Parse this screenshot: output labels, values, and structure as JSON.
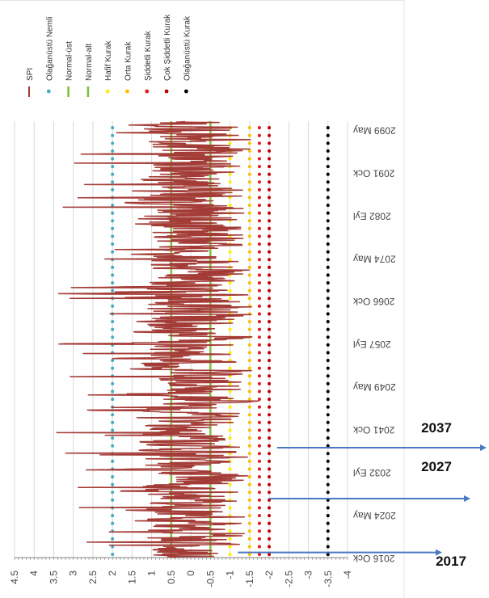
{
  "chart_data": {
    "type": "line",
    "orientation": "rotated-90",
    "title": "",
    "xlabel": "",
    "ylabel": "",
    "value_axis": {
      "ticks": [
        "4.5",
        "4",
        "3.5",
        "3",
        "2.5",
        "2",
        "1.5",
        "1",
        "0.5",
        "0",
        "-0.5",
        "-1",
        "-1.5",
        "-2",
        "-2.5",
        "-3",
        "-3.5",
        "-4"
      ],
      "range": [
        4.5,
        -4
      ]
    },
    "time_axis": {
      "ticks": [
        {
          "label": "2016 Ock",
          "year": 2016.0
        },
        {
          "label": "2024 May",
          "year": 2024.33
        },
        {
          "label": "2032 Eyl",
          "year": 2032.67
        },
        {
          "label": "2041 Ock",
          "year": 2041.0
        },
        {
          "label": "2049 May",
          "year": 2049.33
        },
        {
          "label": "2057 Eyl",
          "year": 2057.67
        },
        {
          "label": "2066 Ock",
          "year": 2066.0
        },
        {
          "label": "2074 May",
          "year": 2074.33
        },
        {
          "label": "2082 Eyl",
          "year": 2082.67
        },
        {
          "label": "2091 Ock",
          "year": 2091.0
        },
        {
          "label": "2099 May",
          "year": 2099.33
        }
      ],
      "range": [
        2016.0,
        2101.0
      ]
    },
    "grid": true,
    "legend_position": "top",
    "series": [
      {
        "name": "SPI",
        "kind": "line",
        "color": "#a33b36",
        "summary": {
          "min": -2.2,
          "max": 3.9,
          "start": 2016.0,
          "end": 2100.9,
          "step": "monthly"
        }
      },
      {
        "name": "Olağanüstü Nemli",
        "kind": "threshold",
        "style": "dots",
        "value": 2.0,
        "color": "#4bacc6"
      },
      {
        "name": "Normal-üst",
        "kind": "threshold",
        "style": "line",
        "value": 0.5,
        "color": "#7cc03c"
      },
      {
        "name": "Normal-alt",
        "kind": "threshold",
        "style": "line",
        "value": -0.5,
        "color": "#7cc03c"
      },
      {
        "name": "Hafif Kurak",
        "kind": "threshold",
        "style": "dots",
        "value": -1.0,
        "color": "#ffee00"
      },
      {
        "name": "Orta Kurak",
        "kind": "threshold",
        "style": "dots",
        "value": -1.5,
        "color": "#ffc000"
      },
      {
        "name": "Şiddetli Kurak",
        "kind": "threshold",
        "style": "dots",
        "value": -1.75,
        "color": "#e41c1c"
      },
      {
        "name": "Çok Şiddetli Kurak",
        "kind": "threshold",
        "style": "dots",
        "value": -2.0,
        "color": "#c00000"
      },
      {
        "name": "Olağanüstü Kurak",
        "kind": "threshold",
        "style": "dots",
        "value": -3.5,
        "color": "#000000"
      }
    ],
    "annotations": [
      {
        "label": "2017",
        "year": 2017.0,
        "arrow_from_value": -1.2
      },
      {
        "label": "2027",
        "year": 2027.5,
        "arrow_from_value": -2.0
      },
      {
        "label": "2037",
        "year": 2037.4,
        "arrow_from_value": -2.2
      }
    ]
  },
  "colors": {
    "spi": "#a33b36",
    "arrow": "#4a78c0",
    "grid": "#d9d9d9",
    "axis": "#7f7f7f"
  }
}
